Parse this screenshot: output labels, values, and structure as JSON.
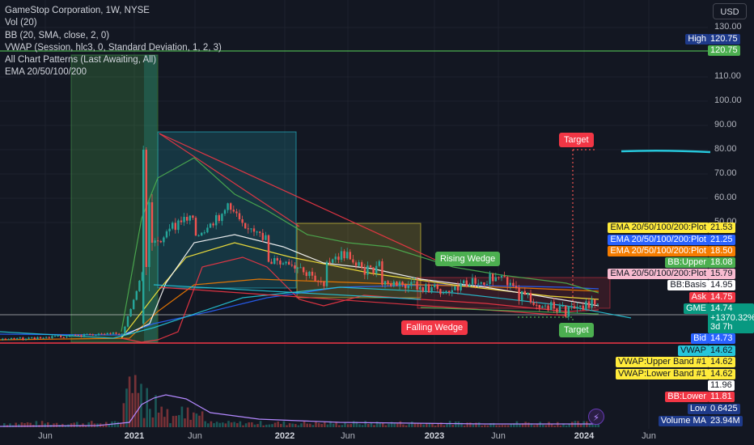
{
  "legend": {
    "title": "GameStop Corporation, 1W, NYSE",
    "indicators": [
      "Vol (20)",
      "BB (20, SMA, close, 2, 0)",
      "VWAP (Session, hlc3, 0, Standard Deviation, 1, 2, 3)",
      "All Chart Patterns (Last Awaiting, All)",
      "EMA 20/50/100/200"
    ]
  },
  "currency": "USD",
  "colors": {
    "background": "#131722",
    "bull": "#26a69a",
    "bear": "#ef5350",
    "wedge_red": "#f23645",
    "target_green": "#4caf50",
    "high_line": "#4caf50",
    "bid_line": "#f23645",
    "ema_200": "#2962ff",
    "ema_100": "#f57c00",
    "ema_50": "#ffeb3b",
    "bb_upper": "#4caf50",
    "bb_lower": "#f23645",
    "vwap": "#26c6da"
  },
  "price_axis": {
    "ticks": [
      "130.00",
      "110.00",
      "100.00",
      "90.00",
      "80.00",
      "70.00",
      "60.00",
      "50.00"
    ]
  },
  "time_axis": {
    "ticks": [
      {
        "label": "Jun",
        "bold": false
      },
      {
        "label": "2021",
        "bold": true
      },
      {
        "label": "Jun",
        "bold": false
      },
      {
        "label": "2022",
        "bold": true
      },
      {
        "label": "Jun",
        "bold": false
      },
      {
        "label": "2023",
        "bold": true
      },
      {
        "label": "Jun",
        "bold": false
      },
      {
        "label": "2024",
        "bold": true
      },
      {
        "label": "Jun",
        "bold": false
      }
    ]
  },
  "price_labels": [
    {
      "name": "High",
      "value": "120.75",
      "bg": "#1e3a8a",
      "fg": "#ffffff"
    },
    {
      "name": "",
      "value": "120.75",
      "bg": "#4caf50",
      "fg": "#ffffff"
    },
    {
      "name": "EMA 20/50/100/200:Plot",
      "value": "21.53",
      "bg": "#ffeb3b",
      "fg": "#131722"
    },
    {
      "name": "EMA 20/50/100/200:Plot",
      "value": "21.25",
      "bg": "#2962ff",
      "fg": "#ffffff"
    },
    {
      "name": "EMA 20/50/100/200:Plot",
      "value": "18.50",
      "bg": "#f57c00",
      "fg": "#ffffff"
    },
    {
      "name": "BB:Upper",
      "value": "18.08",
      "bg": "#4caf50",
      "fg": "#ffffff"
    },
    {
      "name": "EMA 20/50/100/200:Plot",
      "value": "15.79",
      "bg": "#f8bbd0",
      "fg": "#131722"
    },
    {
      "name": "BB:Basis",
      "value": "14.95",
      "bg": "#ffffff",
      "fg": "#131722"
    },
    {
      "name": "Ask",
      "value": "14.75",
      "bg": "#f23645",
      "fg": "#ffffff"
    },
    {
      "name": "GME",
      "value": "14.74",
      "bg": "#089981",
      "fg": "#ffffff"
    },
    {
      "name": "Bid",
      "value": "14.73",
      "bg": "#2962ff",
      "fg": "#ffffff"
    },
    {
      "name": "VWAP",
      "value": "14.62",
      "bg": "#26c6da",
      "fg": "#131722"
    },
    {
      "name": "VWAP:Upper Band #1",
      "value": "14.62",
      "bg": "#ffeb3b",
      "fg": "#131722"
    },
    {
      "name": "VWAP:Lower Band #1",
      "value": "14.62",
      "bg": "#ffeb3b",
      "fg": "#131722"
    },
    {
      "name": "",
      "value": "11.96",
      "bg": "#ffffff",
      "fg": "#131722"
    },
    {
      "name": "BB:Lower",
      "value": "11.81",
      "bg": "#f23645",
      "fg": "#ffffff"
    },
    {
      "name": "Low",
      "value": "0.6425",
      "bg": "#1e3a8a",
      "fg": "#ffffff"
    },
    {
      "name": "Volume MA",
      "value": "23.94M",
      "bg": "#1e3a8a",
      "fg": "#ffffff"
    }
  ],
  "gme_change": "+1370.32%",
  "gme_countdown": "3d 7h",
  "pattern_labels": {
    "rising_wedge": "Rising Wedge",
    "falling_wedge": "Falling Wedge",
    "target_upper": "Target",
    "target_lower": "Target"
  },
  "chart_data": {
    "type": "line",
    "title": "GameStop Corporation, 1W, NYSE",
    "symbol": "GME",
    "scale": "log",
    "x": [
      "2020-03",
      "2020-06",
      "2020-09",
      "2021-01",
      "2021-02",
      "2021-03",
      "2021-06",
      "2021-09",
      "2021-11",
      "2022-01",
      "2022-04",
      "2022-06",
      "2022-08",
      "2022-10",
      "2023-01",
      "2023-04",
      "2023-06",
      "2023-08",
      "2023-10",
      "2023-12",
      "2024-01"
    ],
    "series": [
      {
        "name": "GME",
        "values": [
          0.8,
          1.0,
          2.5,
          5.0,
          60.0,
          45.0,
          50.0,
          45.0,
          48.0,
          32.0,
          27.0,
          32.0,
          38.0,
          27.0,
          20.0,
          22.0,
          25.0,
          18.0,
          13.0,
          16.0,
          14.74
        ]
      }
    ],
    "ylim": [
      0.5,
      130
    ],
    "high": 120.75,
    "low": 0.6425,
    "last": 14.74,
    "change_pct": "+1370.32%",
    "targets": {
      "upper": 80.0,
      "lower": 11.5
    },
    "grid": true,
    "legend": "top-left"
  }
}
